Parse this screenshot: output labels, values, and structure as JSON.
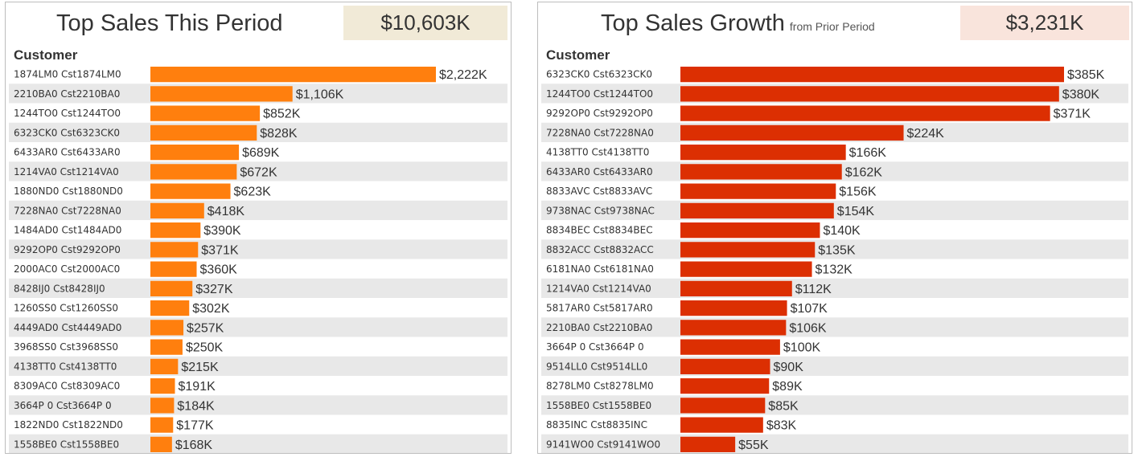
{
  "colors": {
    "orange": "#ff7f0e",
    "red": "#dc2f02",
    "stripe": "#e8e8e8",
    "kpi_left_bg": "#f1ead7",
    "kpi_right_bg": "#f9e4dc"
  },
  "left": {
    "title": "Top Sales This Period",
    "kpi": "$10,603K",
    "column_header": "Customer"
  },
  "right": {
    "title": "Top Sales Growth",
    "subtitle": "from Prior Period",
    "kpi": "$3,231K",
    "column_header": "Customer"
  },
  "chart_data": [
    {
      "type": "bar",
      "orientation": "horizontal",
      "title": "Top Sales This Period",
      "color": "#ff7f0e",
      "categories": [
        "1874LM0  Cst1874LM0",
        "2210BA0  Cst2210BA0",
        "1244TO0  Cst1244TO0",
        "6323CK0  Cst6323CK0",
        "6433AR0  Cst6433AR0",
        "1214VA0  Cst1214VA0",
        "1880ND0  Cst1880ND0",
        "7228NA0  Cst7228NA0",
        "1484AD0  Cst1484AD0",
        "9292OP0  Cst9292OP0",
        "2000AC0  Cst2000AC0",
        "8428IJ0  Cst8428IJ0",
        "1260SS0  Cst1260SS0",
        "4449AD0  Cst4449AD0",
        "3968SS0  Cst3968SS0",
        "4138TT0  Cst4138TT0",
        "8309AC0  Cst8309AC0",
        "3664P 0  Cst3664P 0",
        "1822ND0  Cst1822ND0",
        "1558BE0  Cst1558BE0"
      ],
      "values": [
        2222,
        1106,
        852,
        828,
        689,
        672,
        623,
        418,
        390,
        371,
        360,
        327,
        302,
        257,
        250,
        215,
        191,
        184,
        177,
        168
      ],
      "labels": [
        "$2,222K",
        "$1,106K",
        "$852K",
        "$828K",
        "$689K",
        "$672K",
        "$623K",
        "$418K",
        "$390K",
        "$371K",
        "$360K",
        "$327K",
        "$302K",
        "$257K",
        "$250K",
        "$215K",
        "$191K",
        "$184K",
        "$177K",
        "$168K"
      ],
      "ylabel": "Customer",
      "units": "K"
    },
    {
      "type": "bar",
      "orientation": "horizontal",
      "title": "Top Sales Growth",
      "subtitle": "from Prior Period",
      "color": "#dc2f02",
      "categories": [
        "6323CK0  Cst6323CK0",
        "1244TO0  Cst1244TO0",
        "9292OP0  Cst9292OP0",
        "7228NA0  Cst7228NA0",
        "4138TT0  Cst4138TT0",
        "6433AR0  Cst6433AR0",
        "8833AVC  Cst8833AVC",
        "9738NAC  Cst9738NAC",
        "8834BEC  Cst8834BEC",
        "8832ACC  Cst8832ACC",
        "6181NA0  Cst6181NA0",
        "1214VA0  Cst1214VA0",
        "5817AR0  Cst5817AR0",
        "2210BA0  Cst2210BA0",
        "3664P 0  Cst3664P 0",
        "9514LL0  Cst9514LL0",
        "8278LM0  Cst8278LM0",
        "1558BE0  Cst1558BE0",
        "8835INC  Cst8835INC",
        "9141WO0  Cst9141WO0"
      ],
      "values": [
        385,
        380,
        371,
        224,
        166,
        162,
        156,
        154,
        140,
        135,
        132,
        112,
        107,
        106,
        100,
        90,
        89,
        85,
        83,
        55
      ],
      "labels": [
        "$385K",
        "$380K",
        "$371K",
        "$224K",
        "$166K",
        "$162K",
        "$156K",
        "$154K",
        "$140K",
        "$135K",
        "$132K",
        "$112K",
        "$107K",
        "$106K",
        "$100K",
        "$90K",
        "$89K",
        "$85K",
        "$83K",
        "$55K"
      ],
      "ylabel": "Customer",
      "units": "K"
    }
  ]
}
